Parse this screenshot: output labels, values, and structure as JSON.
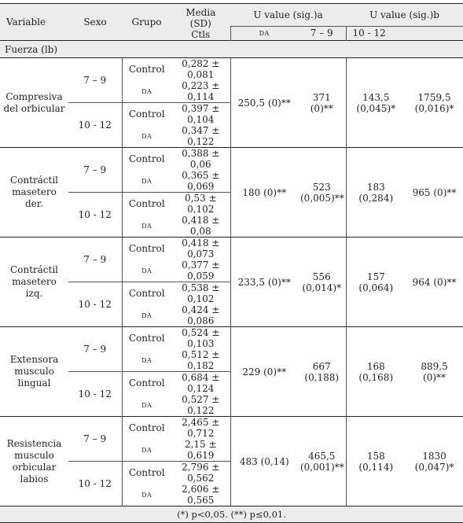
{
  "headers": {
    "variable": "Variable",
    "sexo": "Sexo",
    "grupo": "Grupo",
    "media": "Media (SD)",
    "media_sub": "Ctls",
    "u_a": "U value (sig.)a",
    "u_b": "U value (sig.)b",
    "sub_da": "DA",
    "sub_7_9": "7 – 9",
    "sub_10_12": "10 - 12"
  },
  "section": "Fuerza (lb)",
  "rows": [
    {
      "variable_line1": "Compresiva",
      "variable_line2": "del orbicular",
      "variable_line3": "",
      "sexo_a": "7 – 9",
      "sexo_b": "10 - 12",
      "groups": [
        "Control",
        "DA",
        "Control",
        "DA"
      ],
      "means": [
        "0,282 ± 0,081",
        "0,223 ± 0,114",
        "0,397 ± 0,104",
        "0,347 ± 0,122"
      ],
      "u_da": "250,5 (0)**",
      "u_7_9_l1": "371 (0)**",
      "u_7_9_l2": "",
      "u_10_12_l1": "143,5",
      "u_10_12_l2": "(0,045)*",
      "u_b_l1": "1759,5",
      "u_b_l2": "(0,016)*"
    },
    {
      "variable_line1": "Contráctil",
      "variable_line2": "masetero der.",
      "variable_line3": "",
      "sexo_a": "7 – 9",
      "sexo_b": "10 - 12",
      "groups": [
        "Control",
        "DA",
        "Control",
        "DA"
      ],
      "means": [
        "0,388 ± 0,06",
        "0,365 ± 0,069",
        "0,53 ± 0,102",
        "0,418 ± 0,08"
      ],
      "u_da": "180 (0)**",
      "u_7_9_l1": "523",
      "u_7_9_l2": "(0,005)**",
      "u_10_12_l1": "183 (0,284)",
      "u_10_12_l2": "",
      "u_b_l1": "965 (0)**",
      "u_b_l2": ""
    },
    {
      "variable_line1": "Contráctil",
      "variable_line2": "masetero izq.",
      "variable_line3": "",
      "sexo_a": "7 – 9",
      "sexo_b": "10 - 12",
      "groups": [
        "Control",
        "DA",
        "Control",
        "DA"
      ],
      "means": [
        "0,418 ± 0,073",
        "0,377 ± 0,059",
        "0,538 ± 0,102",
        "0,424 ± 0,086"
      ],
      "u_da": "233,5 (0)**",
      "u_7_9_l1": "556 (0,014)*",
      "u_7_9_l2": "",
      "u_10_12_l1": "157 (0,064)",
      "u_10_12_l2": "",
      "u_b_l1": "964 (0)**",
      "u_b_l2": ""
    },
    {
      "variable_line1": "Extensora",
      "variable_line2": "musculo",
      "variable_line3": "lingual",
      "sexo_a": "7 – 9",
      "sexo_b": "10 - 12",
      "groups": [
        "Control",
        "DA",
        "Control",
        "DA"
      ],
      "means": [
        "0,524 ± 0,103",
        "0,512 ± 0,182",
        "0,684 ± 0,124",
        "0,527 ± 0,122"
      ],
      "u_da": "229 (0)**",
      "u_7_9_l1": "667 (0,188)",
      "u_7_9_l2": "",
      "u_10_12_l1": "168 (0,168)",
      "u_10_12_l2": "",
      "u_b_l1": "889,5 (0)**",
      "u_b_l2": ""
    },
    {
      "variable_line1": "Resistencia",
      "variable_line2": "musculo",
      "variable_line3": "orbicular",
      "variable_line4": "labios",
      "sexo_a": "7 – 9",
      "sexo_b": "10 - 12",
      "groups": [
        "Control",
        "DA",
        "Control",
        "DA"
      ],
      "means": [
        "2,465 ± 0,712",
        "2,15 ± 0,619",
        "2,796 ± 0,562",
        "2,606 ± 0,565"
      ],
      "u_da": "483 (0,14)",
      "u_7_9_l1": "465,5",
      "u_7_9_l2": "(0,001)**",
      "u_10_12_l1": "158 (0,114)",
      "u_10_12_l2": "",
      "u_b_l1": "1830",
      "u_b_l2": "(0,047)*"
    }
  ],
  "footer": "(*) p<0,05. (**) p≤0,01."
}
